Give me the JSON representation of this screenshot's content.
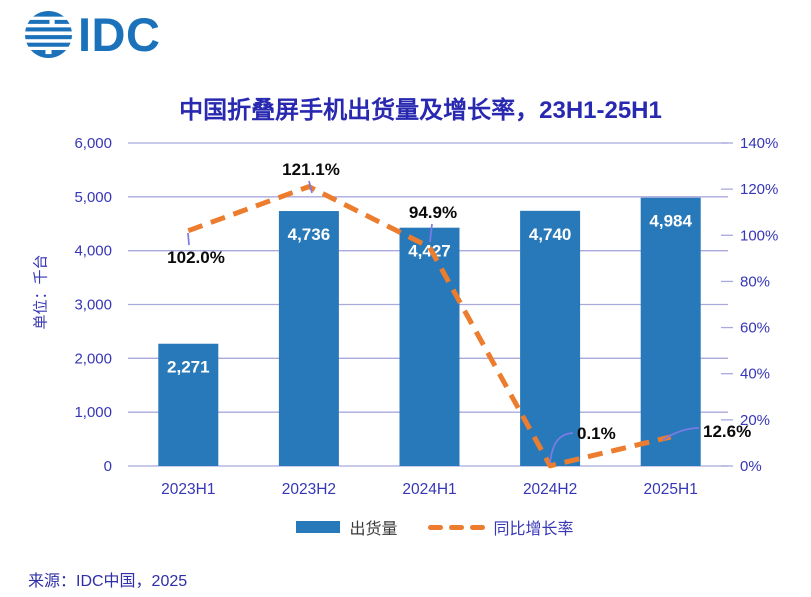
{
  "logo": {
    "text": "IDC"
  },
  "title": "中国折叠屏手机出货量及增长率，23H1-25H1",
  "y_axis_unit_label": "单位：千台",
  "source": "来源：IDC中国，2025",
  "legend": {
    "shipments": "出货量",
    "growth": "同比增长率"
  },
  "colors": {
    "brand": "#1B72BB",
    "bar": "#2879B9",
    "line": "#ED7D2E",
    "grid": "#A9A9DC",
    "axis_text": "#3636B6",
    "title_text": "#2828B0",
    "annotation_text": "#0A0A0A",
    "bar_label_text": "#FFFFFF",
    "leader": "#7B7BE6"
  },
  "chart_data": {
    "type": "bar+line",
    "title": "中国折叠屏手机出货量及增长率，23H1-25H1",
    "categories": [
      "2023H1",
      "2023H2",
      "2024H1",
      "2024H2",
      "2025H1"
    ],
    "series": [
      {
        "name": "出货量",
        "type": "bar",
        "axis": "left",
        "values": [
          2271,
          4736,
          4427,
          4740,
          4984
        ],
        "labels": [
          "2,271",
          "4,736",
          "4,427",
          "4,740",
          "4,984"
        ]
      },
      {
        "name": "同比增长率",
        "type": "line",
        "axis": "right",
        "values": [
          102.0,
          121.1,
          94.9,
          0.1,
          12.6
        ],
        "labels": [
          "102.0%",
          "121.1%",
          "94.9%",
          "0.1%",
          "12.6%"
        ]
      }
    ],
    "y_left": {
      "min": 0,
      "max": 6000,
      "step": 1000,
      "ticks": [
        "0",
        "1,000",
        "2,000",
        "3,000",
        "4,000",
        "5,000",
        "6,000"
      ],
      "unit": "千台"
    },
    "y_right": {
      "min": 0,
      "max": 140,
      "step": 20,
      "ticks": [
        "0%",
        "20%",
        "40%",
        "60%",
        "80%",
        "100%",
        "120%",
        "140%"
      ]
    },
    "grid": true,
    "legend_position": "bottom"
  }
}
